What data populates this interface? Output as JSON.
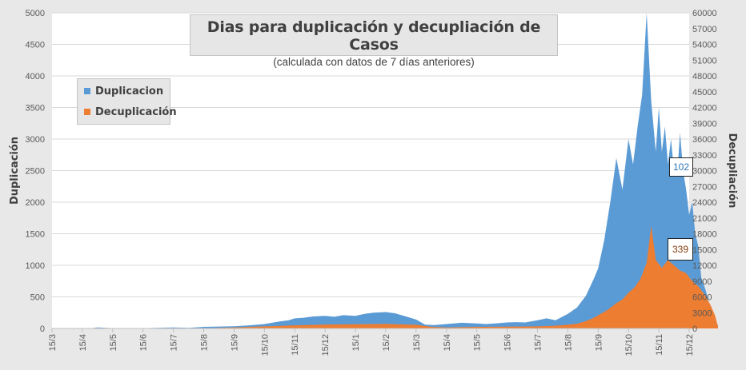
{
  "chart_data": {
    "type": "area",
    "title": "Dias para duplicación y decupliación de Casos",
    "subtitle": "(calculada con datos de 7 días anteriores)",
    "x_tick_labels": [
      "15/3",
      "15/4",
      "15/5",
      "15/6",
      "15/7",
      "15/8",
      "15/9",
      "15/10",
      "15/11",
      "15/12",
      "15/1",
      "15/2",
      "15/3",
      "15/4",
      "15/5",
      "15/6",
      "15/7",
      "15/8",
      "15/9",
      "15/10",
      "15/11",
      "15/12"
    ],
    "left_axis": {
      "label": "Duplicación",
      "ylim": [
        0,
        5000
      ],
      "ticks": [
        "0",
        "500",
        "1000",
        "1500",
        "2000",
        "2500",
        "3000",
        "3500",
        "4000",
        "4500",
        "5000"
      ]
    },
    "right_axis": {
      "label": "Decupliación",
      "ylim": [
        0,
        60000
      ],
      "ticks": [
        "0",
        "3000",
        "6000",
        "9000",
        "12000",
        "15000",
        "18000",
        "21000",
        "24000",
        "27000",
        "30000",
        "33000",
        "36000",
        "39000",
        "42000",
        "45000",
        "48000",
        "51000",
        "54000",
        "57000",
        "60000"
      ]
    },
    "grid": "horizontal",
    "legend_position": "top-left",
    "series": [
      {
        "name": "Duplicacion",
        "axis": "left",
        "color": "#5b9bd5",
        "x": [
          0,
          0.5,
          1,
          1.3,
          1.5,
          1.8,
          2,
          3,
          4,
          4.5,
          5,
          6,
          6.5,
          7,
          7.5,
          7.8,
          8,
          8.3,
          8.6,
          9,
          9.3,
          9.6,
          10,
          10.3,
          10.6,
          11,
          11.3,
          11.6,
          12,
          12.3,
          12.6,
          13,
          13.5,
          14,
          14.3,
          14.6,
          15,
          15.3,
          15.6,
          16,
          16.3,
          16.6,
          17,
          17.3,
          17.6,
          17.85,
          18,
          18.2,
          18.4,
          18.6,
          18.8,
          19,
          19.15,
          19.3,
          19.45,
          19.6,
          19.75,
          19.9,
          20,
          20.1,
          20.2,
          20.3,
          20.4,
          20.5,
          20.6,
          20.7,
          20.8,
          20.9,
          21,
          21.1,
          21.2,
          21.3,
          21.4,
          21.55,
          21.7,
          21.85,
          21.95
        ],
        "values": [
          0,
          0,
          0,
          5,
          15,
          10,
          5,
          5,
          15,
          10,
          25,
          35,
          50,
          70,
          110,
          130,
          160,
          170,
          190,
          200,
          185,
          210,
          200,
          230,
          250,
          260,
          240,
          200,
          140,
          60,
          55,
          70,
          90,
          80,
          70,
          80,
          95,
          100,
          95,
          130,
          160,
          130,
          230,
          330,
          520,
          780,
          950,
          1400,
          2000,
          2700,
          2200,
          3000,
          2600,
          3200,
          3700,
          5000,
          3600,
          2800,
          3500,
          2800,
          3200,
          2600,
          3000,
          2500,
          2400,
          3100,
          2500,
          2200,
          1800,
          2000,
          1500,
          1300,
          800,
          600,
          300,
          102,
          50
        ]
      },
      {
        "name": "Decuplicación",
        "axis": "right",
        "color": "#ed7d31",
        "x": [
          0,
          1,
          2,
          4,
          5,
          6,
          7,
          8,
          9,
          10,
          11,
          12,
          12.5,
          13,
          13.5,
          14,
          15,
          16,
          16.5,
          17,
          17.3,
          17.6,
          17.85,
          18,
          18.3,
          18.6,
          18.8,
          19,
          19.2,
          19.4,
          19.6,
          19.75,
          19.9,
          20.1,
          20.3,
          20.5,
          20.7,
          20.9,
          21.1,
          21.3,
          21.5,
          21.7,
          21.85,
          21.95
        ],
        "values": [
          0,
          0,
          0,
          0,
          50,
          200,
          400,
          600,
          750,
          800,
          850,
          700,
          300,
          200,
          250,
          300,
          350,
          400,
          500,
          700,
          900,
          1400,
          2000,
          2500,
          3500,
          4800,
          5500,
          6800,
          7800,
          9500,
          12500,
          19500,
          13000,
          11500,
          13000,
          12000,
          11000,
          10500,
          9000,
          8000,
          6500,
          4500,
          2500,
          339
        ]
      }
    ]
  },
  "labels": {
    "dup_callout": "102",
    "dec_callout": "339"
  }
}
